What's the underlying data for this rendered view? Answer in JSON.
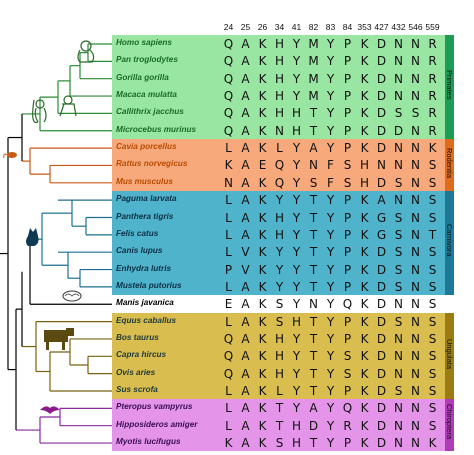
{
  "positions": [
    "24",
    "25",
    "26",
    "34",
    "41",
    "82",
    "83",
    "84",
    "353",
    "427",
    "432",
    "546",
    "559"
  ],
  "groups": [
    {
      "name": "Primates",
      "color": "#98e6a2",
      "bar": "#1d9c57",
      "textColor": "#1c6b22",
      "rows": [
        0,
        5
      ]
    },
    {
      "name": "Rodentia",
      "color": "#f8a97b",
      "bar": "#e16b1c",
      "textColor": "#b94a00",
      "rows": [
        6,
        8
      ]
    },
    {
      "name": "Carnivora",
      "color": "#4fb3cc",
      "bar": "#1c7a98",
      "textColor": "#0b2f45",
      "rows": [
        9,
        14
      ]
    },
    {
      "name": "Ungulata",
      "color": "#d9bd4e",
      "bar": "#9a7c12",
      "textColor": "#1e3a3a",
      "rows": [
        16,
        20
      ]
    },
    {
      "name": "Chiroptera",
      "color": "#e595e9",
      "bar": "#b13ab8",
      "textColor": "#3a0b5a",
      "rows": [
        21,
        23
      ]
    }
  ],
  "species": [
    {
      "name": "Homo sapiens",
      "seq": "QAKHYMYPKDNNR"
    },
    {
      "name": "Pan troglodytes",
      "seq": "QAKHYMYPKDNNR"
    },
    {
      "name": "Gorilla gorilla",
      "seq": "QAKHYMYPKDNNR"
    },
    {
      "name": "Macaca mulatta",
      "seq": "QAKHYMYPKDNNR"
    },
    {
      "name": "Callithrix jacchus",
      "seq": "QAKHHTYPKDSSR"
    },
    {
      "name": "Microcebus murinus",
      "seq": "QAKNHTYPKDDNR"
    },
    {
      "name": "Cavia porcellus",
      "seq": "LAKLYAYPKDNNK"
    },
    {
      "name": "Rattus norvegicus",
      "seq": "KAEQYNFSHNNNS"
    },
    {
      "name": "Mus musculus",
      "seq": "NAKQYSFSHDSNS"
    },
    {
      "name": "Paguma larvata",
      "seq": "LAKYYTYPKANNS"
    },
    {
      "name": "Panthera tigris",
      "seq": "LAKHYTYPKGSNS"
    },
    {
      "name": "Felis catus",
      "seq": "LAKHYTYPKGSNT"
    },
    {
      "name": "Canis lupus",
      "seq": "LVKYYTYPKDSNS"
    },
    {
      "name": "Enhydra lutris",
      "seq": "PVKYYTYPKDSNS"
    },
    {
      "name": "Mustela putorius",
      "seq": "LAKYYTYPKDSNS"
    },
    {
      "name": "Manis javanica",
      "seq": "EAKSYNYQKDNNS"
    },
    {
      "name": "Equus caballus",
      "seq": "LAKSHTYPKDSNS"
    },
    {
      "name": "Bos taurus",
      "seq": "QAKHYTYPKDNNS"
    },
    {
      "name": "Capra hircus",
      "seq": "QAKHYTYSKDNNS"
    },
    {
      "name": "Ovis aries",
      "seq": "QAKHYTYSKDNNS"
    },
    {
      "name": "Sus scrofa",
      "seq": "LAKLYTYPKDSNS"
    },
    {
      "name": "Pteropus vampyrus",
      "seq": "LAKTYAYQKDNNS"
    },
    {
      "name": "Hipposideros amiger",
      "seq": "LAKTHDYRKDNNS"
    },
    {
      "name": "Myotis lucifugus",
      "seq": "KAKSHTYPKDNNK"
    }
  ]
}
